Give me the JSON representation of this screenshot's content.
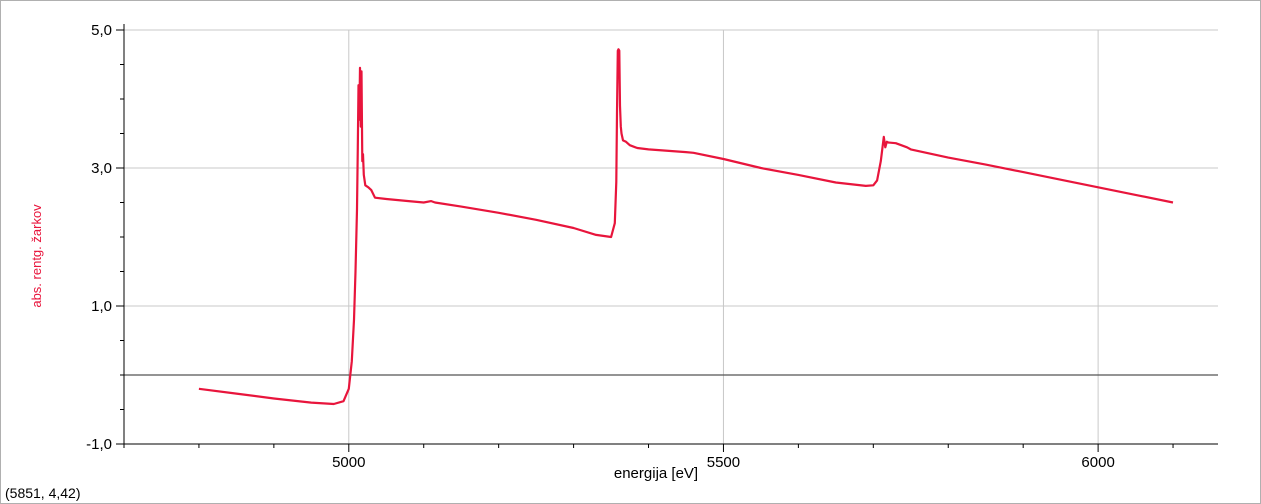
{
  "chart_data": {
    "type": "line",
    "xlabel": "energija [eV]",
    "ylabel": "abs. rentg. žarkov",
    "xlim": [
      4700,
      6160
    ],
    "ylim": [
      -1.0,
      5.0
    ],
    "x_ticks": [
      5000,
      5500,
      6000
    ],
    "x_tick_labels": [
      "5000",
      "5500",
      "6000"
    ],
    "y_ticks": [
      -1.0,
      1.0,
      3.0,
      5.0
    ],
    "y_tick_labels": [
      "-1,0",
      "1,0",
      "3,0",
      "5,0"
    ],
    "grid": true,
    "legend": "none",
    "zero_line": true,
    "colors": {
      "series": "#e8153c",
      "grid": "#c8c8c8",
      "axis": "#000000"
    },
    "series": [
      {
        "x": [
          4800,
          4850,
          4900,
          4950,
          4980,
          4993,
          5000,
          5004,
          5007,
          5009,
          5011,
          5012,
          5013,
          5014,
          5015,
          5016,
          5017,
          5018,
          5019,
          5020,
          5022,
          5026,
          5030,
          5035,
          5050,
          5080,
          5100,
          5110,
          5115,
          5150,
          5200,
          5250,
          5300,
          5330,
          5350,
          5355,
          5357,
          5358,
          5359,
          5360,
          5361,
          5362,
          5363,
          5364,
          5366,
          5370,
          5375,
          5385,
          5400,
          5450,
          5460,
          5500,
          5550,
          5600,
          5650,
          5690,
          5700,
          5705,
          5710,
          5714,
          5716,
          5718,
          5720,
          5730,
          5745,
          5750,
          5800,
          5850,
          5900,
          5950,
          6000,
          6050,
          6100
        ],
        "y": [
          -0.2,
          -0.27,
          -0.34,
          -0.4,
          -0.42,
          -0.38,
          -0.2,
          0.2,
          0.8,
          1.5,
          2.4,
          3.3,
          4.2,
          3.7,
          4.45,
          3.6,
          4.4,
          3.1,
          3.2,
          2.9,
          2.75,
          2.72,
          2.68,
          2.57,
          2.55,
          2.52,
          2.5,
          2.52,
          2.5,
          2.44,
          2.35,
          2.25,
          2.13,
          2.03,
          2.0,
          2.2,
          2.8,
          3.8,
          4.7,
          4.72,
          4.7,
          3.9,
          3.6,
          3.5,
          3.4,
          3.38,
          3.33,
          3.29,
          3.27,
          3.23,
          3.22,
          3.13,
          3.0,
          2.9,
          2.79,
          2.74,
          2.75,
          2.82,
          3.1,
          3.45,
          3.3,
          3.38,
          3.37,
          3.36,
          3.3,
          3.27,
          3.15,
          3.05,
          2.94,
          2.83,
          2.72,
          2.61,
          2.5
        ]
      }
    ]
  },
  "status": {
    "cursor_readout": "(5851, 4,42)"
  }
}
